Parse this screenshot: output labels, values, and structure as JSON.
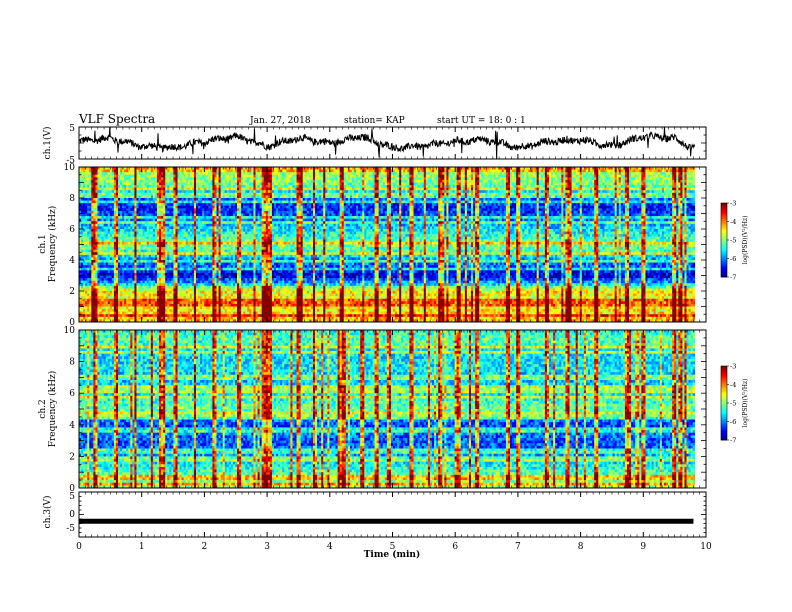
{
  "header": {
    "title": "VLF Spectra",
    "date": "Jan. 27, 2018",
    "station": "station= KAP",
    "start_ut": "start  UT =   18: 0  : 1"
  },
  "chart_data": [
    {
      "type": "line",
      "name": "ch1-waveform",
      "ylabel": "ch.1(V)",
      "ylim": [
        -5,
        5
      ],
      "yticks": [
        "5",
        "-5"
      ],
      "xlim": [
        0,
        10
      ],
      "note_series_shape": "noisy trace oscillating mostly between -2 and 3 V with broad ~1.3 min undulations",
      "envelope_x": [
        0,
        0.5,
        1.0,
        1.5,
        2.0,
        2.5,
        3.0,
        3.5,
        4.0,
        4.5,
        5.0,
        5.5,
        6.0,
        6.5,
        7.0,
        7.5,
        8.0,
        8.5,
        9.0,
        9.5,
        9.8
      ],
      "envelope_y": [
        0.5,
        1.5,
        -1.0,
        -1.5,
        0.5,
        2.0,
        -1.0,
        1.5,
        0.0,
        2.0,
        -1.5,
        -1.0,
        0.5,
        1.0,
        -1.5,
        0.5,
        1.0,
        -1.0,
        2.0,
        1.5,
        -2.0
      ],
      "color": "#000000"
    },
    {
      "type": "heatmap",
      "name": "ch1-spectrogram",
      "ylabel": "ch.1\nFrequency  (kHz)",
      "ylim": [
        0,
        10
      ],
      "yticks": [
        "0",
        "2",
        "4",
        "6",
        "8",
        "10"
      ],
      "xlim": [
        0,
        10
      ],
      "colorbar": {
        "label": "log(PSD)(V²/Hz)",
        "range": [
          -7,
          -3
        ],
        "ticks": [
          "-3",
          "-4",
          "-5",
          "-6",
          "-7"
        ]
      },
      "base_level_by_freq_khz": [
        {
          "f": 0.0,
          "v": -4.2
        },
        {
          "f": 0.5,
          "v": -4.4
        },
        {
          "f": 1.0,
          "v": -4.5
        },
        {
          "f": 1.5,
          "v": -4.6
        },
        {
          "f": 2.0,
          "v": -4.4
        },
        {
          "f": 2.5,
          "v": -5.8
        },
        {
          "f": 3.0,
          "v": -6.7
        },
        {
          "f": 3.5,
          "v": -6.2
        },
        {
          "f": 4.0,
          "v": -5.9
        },
        {
          "f": 4.5,
          "v": -5.3
        },
        {
          "f": 5.0,
          "v": -5.0
        },
        {
          "f": 5.5,
          "v": -5.3
        },
        {
          "f": 6.0,
          "v": -5.6
        },
        {
          "f": 6.5,
          "v": -5.9
        },
        {
          "f": 7.0,
          "v": -6.3
        },
        {
          "f": 7.5,
          "v": -6.4
        },
        {
          "f": 8.0,
          "v": -6.0
        },
        {
          "f": 8.5,
          "v": -5.4
        },
        {
          "f": 9.0,
          "v": -5.0
        },
        {
          "f": 9.5,
          "v": -4.9
        },
        {
          "f": 10.0,
          "v": -5.0
        }
      ],
      "impulsive_events_min": [
        0.25,
        0.6,
        0.9,
        1.3,
        1.35,
        1.55,
        1.85,
        2.15,
        2.55,
        2.95,
        3.0,
        3.05,
        3.5,
        3.75,
        4.2,
        4.75,
        4.95,
        5.3,
        5.75,
        6.05,
        6.35,
        6.85,
        7.0,
        7.45,
        7.8,
        8.25,
        8.75,
        9.0,
        9.5,
        9.6
      ]
    },
    {
      "type": "heatmap",
      "name": "ch2-spectrogram",
      "ylabel": "ch.2\nFrequency  (kHz)",
      "ylim": [
        0,
        10
      ],
      "yticks": [
        "0",
        "2",
        "4",
        "6",
        "8",
        "10"
      ],
      "xlim": [
        0,
        10
      ],
      "colorbar": {
        "label": "log(PSD)(V²/Hz)",
        "range": [
          -7,
          -3
        ],
        "ticks": [
          "-3",
          "-4",
          "-5",
          "-6",
          "-7"
        ]
      },
      "base_level_by_freq_khz": [
        {
          "f": 0.0,
          "v": -4.8
        },
        {
          "f": 0.5,
          "v": -5.0
        },
        {
          "f": 1.0,
          "v": -5.2
        },
        {
          "f": 1.5,
          "v": -5.5
        },
        {
          "f": 2.0,
          "v": -5.8
        },
        {
          "f": 2.5,
          "v": -6.1
        },
        {
          "f": 3.0,
          "v": -6.2
        },
        {
          "f": 3.5,
          "v": -6.0
        },
        {
          "f": 4.0,
          "v": -6.3
        },
        {
          "f": 4.5,
          "v": -5.8
        },
        {
          "f": 5.0,
          "v": -5.0
        },
        {
          "f": 5.5,
          "v": -5.3
        },
        {
          "f": 6.0,
          "v": -5.6
        },
        {
          "f": 6.5,
          "v": -5.6
        },
        {
          "f": 7.0,
          "v": -5.8
        },
        {
          "f": 7.5,
          "v": -5.5
        },
        {
          "f": 8.0,
          "v": -5.6
        },
        {
          "f": 8.5,
          "v": -5.6
        },
        {
          "f": 9.0,
          "v": -5.3
        },
        {
          "f": 9.5,
          "v": -5.2
        },
        {
          "f": 10.0,
          "v": -5.4
        }
      ],
      "impulsive_events_min": [
        0.25,
        0.6,
        0.9,
        1.3,
        1.35,
        1.55,
        1.85,
        2.15,
        2.55,
        2.95,
        3.0,
        3.05,
        3.5,
        3.75,
        4.2,
        4.75,
        4.95,
        5.3,
        5.75,
        6.05,
        6.35,
        6.85,
        7.0,
        7.45,
        7.8,
        8.25,
        8.75,
        9.0,
        9.5,
        9.6
      ]
    },
    {
      "type": "line",
      "name": "ch3-waveform",
      "ylabel": "ch.3(V)",
      "ylim": [
        -5,
        5
      ],
      "yticks": [
        "5",
        "0",
        "-5"
      ],
      "xlim": [
        0,
        10
      ],
      "x": [
        0,
        9.8
      ],
      "y": [
        -1.5,
        -1.5
      ],
      "color": "#000000"
    }
  ],
  "x_axis": {
    "label": "Time  (min)",
    "ticks": [
      "0",
      "1",
      "2",
      "3",
      "4",
      "5",
      "6",
      "7",
      "8",
      "9",
      "10"
    ]
  }
}
